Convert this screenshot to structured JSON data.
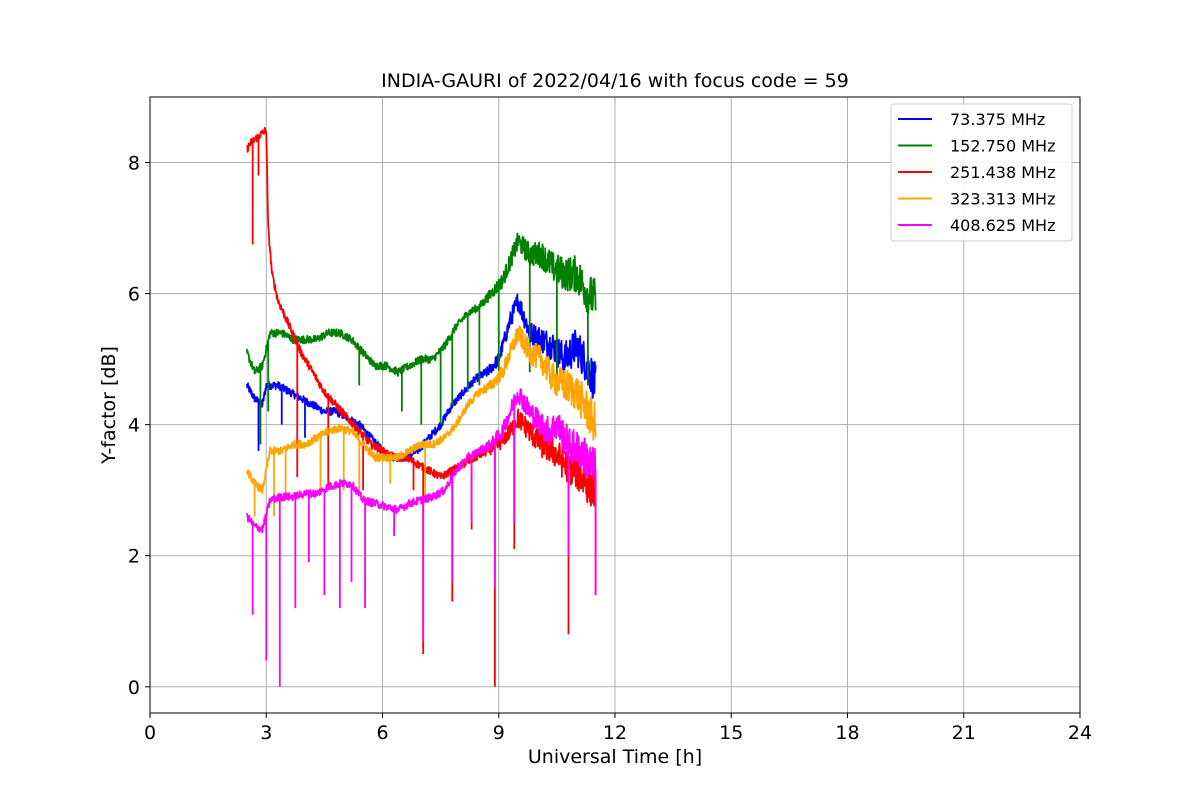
{
  "chart_data": {
    "type": "line",
    "title": "INDIA-GAURI of 2022/04/16 with focus code = 59",
    "xlabel": "Universal Time [h]",
    "ylabel": "Y-factor [dB]",
    "xlim": [
      0,
      24
    ],
    "ylim": [
      -0.4,
      9.0
    ],
    "xticks": [
      0,
      3,
      6,
      9,
      12,
      15,
      18,
      21,
      24
    ],
    "yticks": [
      0,
      2,
      4,
      6,
      8
    ],
    "grid": true,
    "legend_position": "top-right",
    "series": [
      {
        "name": "73.375 MHz",
        "label": " 73.375 MHz",
        "color": "#0000ff",
        "points": [
          [
            2.5,
            4.6
          ],
          [
            2.7,
            4.4
          ],
          [
            2.9,
            4.3
          ],
          [
            3.0,
            4.6
          ],
          [
            3.3,
            4.6
          ],
          [
            3.6,
            4.5
          ],
          [
            3.9,
            4.4
          ],
          [
            4.2,
            4.3
          ],
          [
            4.5,
            4.2
          ],
          [
            4.8,
            4.2
          ],
          [
            5.1,
            4.1
          ],
          [
            5.4,
            4.0
          ],
          [
            5.7,
            3.8
          ],
          [
            6.0,
            3.6
          ],
          [
            6.3,
            3.5
          ],
          [
            6.6,
            3.5
          ],
          [
            6.9,
            3.6
          ],
          [
            7.2,
            3.8
          ],
          [
            7.5,
            4.0
          ],
          [
            7.8,
            4.3
          ],
          [
            8.1,
            4.5
          ],
          [
            8.4,
            4.7
          ],
          [
            8.7,
            4.8
          ],
          [
            9.0,
            5.0
          ],
          [
            9.3,
            5.6
          ],
          [
            9.5,
            5.9
          ],
          [
            9.8,
            5.4
          ],
          [
            10.1,
            5.3
          ],
          [
            10.4,
            5.2
          ],
          [
            10.7,
            5.0
          ],
          [
            11.0,
            5.2
          ],
          [
            11.3,
            4.9
          ],
          [
            11.5,
            4.6
          ]
        ],
        "dips": [
          [
            2.8,
            3.6
          ],
          [
            3.4,
            4.0
          ],
          [
            4.0,
            3.8
          ]
        ]
      },
      {
        "name": "152.750 MHz",
        "label": "152.750 MHz",
        "color": "#008000",
        "points": [
          [
            2.5,
            5.1
          ],
          [
            2.7,
            4.8
          ],
          [
            2.9,
            4.9
          ],
          [
            3.1,
            5.4
          ],
          [
            3.4,
            5.4
          ],
          [
            3.7,
            5.3
          ],
          [
            4.0,
            5.3
          ],
          [
            4.3,
            5.3
          ],
          [
            4.6,
            5.4
          ],
          [
            4.9,
            5.4
          ],
          [
            5.2,
            5.3
          ],
          [
            5.5,
            5.1
          ],
          [
            5.8,
            4.9
          ],
          [
            6.1,
            4.9
          ],
          [
            6.4,
            4.8
          ],
          [
            6.7,
            4.9
          ],
          [
            7.0,
            5.0
          ],
          [
            7.3,
            5.0
          ],
          [
            7.6,
            5.2
          ],
          [
            7.9,
            5.5
          ],
          [
            8.2,
            5.7
          ],
          [
            8.5,
            5.8
          ],
          [
            8.8,
            6.0
          ],
          [
            9.1,
            6.2
          ],
          [
            9.3,
            6.5
          ],
          [
            9.5,
            6.8
          ],
          [
            9.8,
            6.6
          ],
          [
            10.1,
            6.6
          ],
          [
            10.4,
            6.4
          ],
          [
            10.7,
            6.3
          ],
          [
            11.0,
            6.3
          ],
          [
            11.3,
            6.0
          ],
          [
            11.5,
            5.9
          ]
        ],
        "dips": [
          [
            2.85,
            3.7
          ],
          [
            3.05,
            4.2
          ],
          [
            5.4,
            4.6
          ],
          [
            6.5,
            4.2
          ],
          [
            7.0,
            4.0
          ],
          [
            7.5,
            4.0
          ],
          [
            7.8,
            4.3
          ],
          [
            8.2,
            4.5
          ],
          [
            8.5,
            4.6
          ],
          [
            9.0,
            4.8
          ],
          [
            9.8,
            4.8
          ],
          [
            10.5,
            4.7
          ],
          [
            11.3,
            4.6
          ]
        ]
      },
      {
        "name": "251.438 MHz",
        "label": "251.438 MHz",
        "color": "#ff0000",
        "points": [
          [
            2.5,
            8.2
          ],
          [
            2.6,
            8.3
          ],
          [
            2.8,
            8.4
          ],
          [
            3.0,
            8.5
          ],
          [
            3.05,
            7.0
          ],
          [
            3.15,
            6.3
          ],
          [
            3.3,
            5.9
          ],
          [
            3.6,
            5.5
          ],
          [
            3.9,
            5.1
          ],
          [
            4.2,
            4.8
          ],
          [
            4.5,
            4.5
          ],
          [
            4.8,
            4.3
          ],
          [
            5.1,
            4.1
          ],
          [
            5.4,
            3.9
          ],
          [
            5.7,
            3.7
          ],
          [
            6.0,
            3.6
          ],
          [
            6.3,
            3.5
          ],
          [
            6.6,
            3.5
          ],
          [
            6.9,
            3.4
          ],
          [
            7.2,
            3.3
          ],
          [
            7.5,
            3.2
          ],
          [
            7.8,
            3.3
          ],
          [
            8.1,
            3.4
          ],
          [
            8.4,
            3.5
          ],
          [
            8.7,
            3.6
          ],
          [
            9.0,
            3.7
          ],
          [
            9.3,
            3.9
          ],
          [
            9.5,
            4.1
          ],
          [
            9.8,
            3.9
          ],
          [
            10.1,
            3.7
          ],
          [
            10.4,
            3.6
          ],
          [
            10.7,
            3.4
          ],
          [
            11.0,
            3.3
          ],
          [
            11.3,
            3.1
          ],
          [
            11.5,
            3.0
          ]
        ],
        "dips": [
          [
            2.65,
            6.75
          ],
          [
            2.8,
            7.8
          ],
          [
            3.8,
            3.2
          ],
          [
            4.6,
            3.0
          ],
          [
            5.5,
            3.0
          ],
          [
            6.8,
            3.0
          ],
          [
            7.05,
            0.5
          ],
          [
            7.8,
            1.3
          ],
          [
            8.3,
            2.4
          ],
          [
            8.9,
            0.0
          ],
          [
            9.4,
            2.1
          ],
          [
            10.8,
            0.8
          ],
          [
            11.5,
            1.4
          ]
        ]
      },
      {
        "name": "323.313 MHz",
        "label": "323.313 MHz",
        "color": "#ffa500",
        "points": [
          [
            2.5,
            3.3
          ],
          [
            2.7,
            3.1
          ],
          [
            2.9,
            3.0
          ],
          [
            3.1,
            3.6
          ],
          [
            3.4,
            3.6
          ],
          [
            3.7,
            3.7
          ],
          [
            4.0,
            3.7
          ],
          [
            4.3,
            3.8
          ],
          [
            4.6,
            3.9
          ],
          [
            4.9,
            3.95
          ],
          [
            5.2,
            3.9
          ],
          [
            5.5,
            3.7
          ],
          [
            5.8,
            3.5
          ],
          [
            6.1,
            3.5
          ],
          [
            6.4,
            3.5
          ],
          [
            6.7,
            3.6
          ],
          [
            7.0,
            3.7
          ],
          [
            7.3,
            3.7
          ],
          [
            7.6,
            3.8
          ],
          [
            7.9,
            4.0
          ],
          [
            8.2,
            4.3
          ],
          [
            8.5,
            4.5
          ],
          [
            8.8,
            4.6
          ],
          [
            9.1,
            4.8
          ],
          [
            9.3,
            5.1
          ],
          [
            9.5,
            5.4
          ],
          [
            9.8,
            5.1
          ],
          [
            10.1,
            5.0
          ],
          [
            10.4,
            4.7
          ],
          [
            10.7,
            4.6
          ],
          [
            11.0,
            4.5
          ],
          [
            11.3,
            4.2
          ],
          [
            11.5,
            4.0
          ]
        ],
        "dips": [
          [
            2.7,
            2.6
          ],
          [
            3.2,
            2.6
          ],
          [
            3.5,
            2.9
          ],
          [
            4.4,
            3.0
          ],
          [
            5.0,
            3.0
          ],
          [
            5.4,
            3.0
          ],
          [
            6.2,
            3.1
          ],
          [
            7.1,
            2.8
          ]
        ]
      },
      {
        "name": "408.625 MHz",
        "label": "408.625 MHz",
        "color": "#ff00ff",
        "points": [
          [
            2.5,
            2.6
          ],
          [
            2.7,
            2.45
          ],
          [
            2.9,
            2.4
          ],
          [
            3.1,
            2.85
          ],
          [
            3.4,
            2.9
          ],
          [
            3.7,
            2.9
          ],
          [
            4.0,
            2.95
          ],
          [
            4.3,
            2.95
          ],
          [
            4.6,
            3.05
          ],
          [
            4.9,
            3.1
          ],
          [
            5.2,
            3.1
          ],
          [
            5.5,
            2.85
          ],
          [
            5.8,
            2.8
          ],
          [
            6.1,
            2.75
          ],
          [
            6.4,
            2.7
          ],
          [
            6.7,
            2.8
          ],
          [
            7.0,
            2.85
          ],
          [
            7.3,
            2.9
          ],
          [
            7.6,
            3.0
          ],
          [
            7.9,
            3.3
          ],
          [
            8.2,
            3.5
          ],
          [
            8.5,
            3.6
          ],
          [
            8.8,
            3.7
          ],
          [
            9.1,
            3.9
          ],
          [
            9.3,
            4.2
          ],
          [
            9.5,
            4.5
          ],
          [
            9.8,
            4.2
          ],
          [
            10.1,
            4.0
          ],
          [
            10.3,
            3.9
          ],
          [
            10.5,
            4.0
          ],
          [
            10.8,
            3.7
          ],
          [
            11.1,
            3.6
          ],
          [
            11.3,
            3.45
          ],
          [
            11.5,
            3.3
          ]
        ],
        "dips": [
          [
            2.65,
            1.1
          ],
          [
            3.0,
            0.4
          ],
          [
            3.35,
            0.0
          ],
          [
            3.75,
            1.2
          ],
          [
            4.1,
            1.9
          ],
          [
            4.5,
            1.4
          ],
          [
            4.9,
            1.2
          ],
          [
            5.2,
            1.6
          ],
          [
            5.55,
            1.2
          ],
          [
            6.3,
            2.3
          ],
          [
            7.05,
            0.7
          ],
          [
            7.8,
            1.6
          ],
          [
            8.3,
            2.5
          ],
          [
            8.9,
            1.5
          ],
          [
            9.4,
            2.5
          ],
          [
            10.8,
            2.0
          ],
          [
            11.5,
            1.4
          ]
        ]
      }
    ]
  }
}
